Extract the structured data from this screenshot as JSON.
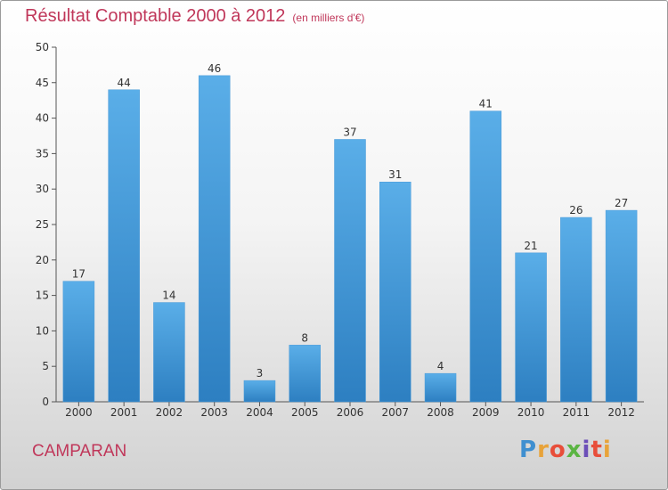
{
  "header": {
    "title": "Résultat Comptable 2000 à 2012",
    "subtitle": "(en milliers d'€)"
  },
  "footer": {
    "commune": "CAMPARAN",
    "logo_text": "Proxiti"
  },
  "colors": {
    "bar_top": "#5aaee8",
    "bar_bottom": "#2d7fc1",
    "axis": "#555555",
    "label": "#333333",
    "accent": "#c0375a"
  },
  "chart_data": {
    "type": "bar",
    "title": "Résultat Comptable 2000 à 2012",
    "subtitle": "(en milliers d'€)",
    "xlabel": "",
    "ylabel": "",
    "ylim": [
      0,
      50
    ],
    "yticks": [
      0,
      5,
      10,
      15,
      20,
      25,
      30,
      35,
      40,
      45,
      50
    ],
    "categories": [
      "2000",
      "2001",
      "2002",
      "2003",
      "2004",
      "2005",
      "2006",
      "2007",
      "2008",
      "2009",
      "2010",
      "2011",
      "2012"
    ],
    "values": [
      17,
      44,
      14,
      46,
      3,
      8,
      37,
      31,
      4,
      41,
      21,
      26,
      27
    ],
    "grid": false,
    "legend": "none"
  }
}
